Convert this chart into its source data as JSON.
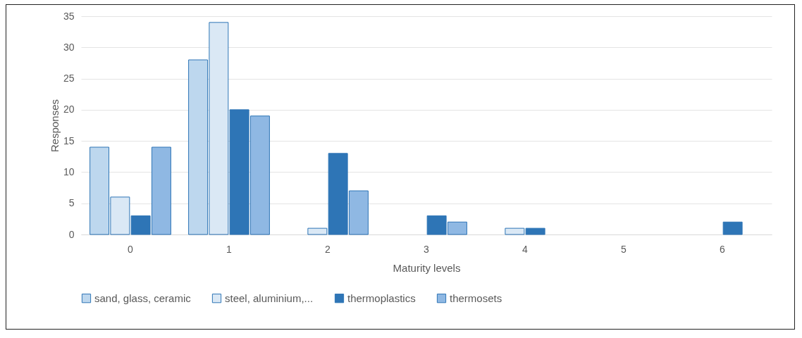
{
  "chart_data": {
    "type": "bar",
    "xlabel": "Maturity levels",
    "ylabel": "Responses",
    "categories": [
      "0",
      "1",
      "2",
      "3",
      "4",
      "5",
      "6"
    ],
    "series": [
      {
        "name": "sand, glass, ceramic",
        "color": "#bdd7ee",
        "values": [
          14,
          28,
          0,
          0,
          0,
          0,
          0
        ]
      },
      {
        "name": "steel, aluminium,...",
        "color": "#dae8f5",
        "values": [
          6,
          34,
          1,
          0,
          1,
          0,
          0
        ]
      },
      {
        "name": "thermoplastics",
        "color": "#2e75b6",
        "values": [
          3,
          20,
          13,
          3,
          1,
          0,
          2
        ]
      },
      {
        "name": "thermosets",
        "color": "#8fb8e3",
        "values": [
          14,
          19,
          7,
          2,
          0,
          0,
          0
        ]
      }
    ],
    "ylim": [
      0,
      35
    ],
    "yticks": [
      0,
      5,
      10,
      15,
      20,
      25,
      30,
      35
    ],
    "grid": "y",
    "legend": "bottom"
  }
}
